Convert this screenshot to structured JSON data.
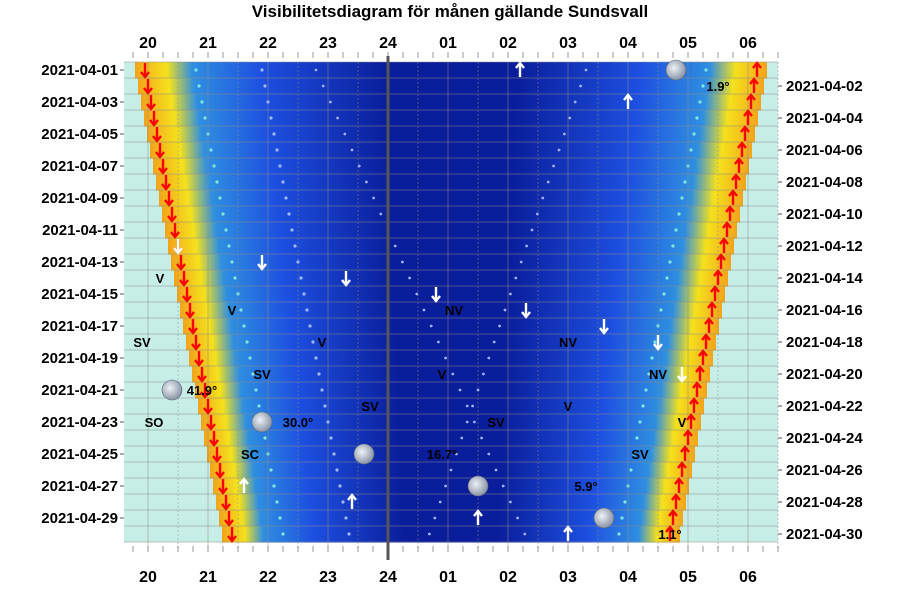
{
  "title": "Visibilitetsdiagram för månen gällande Sundsvall",
  "colors": {
    "twilight": "#c6eee6",
    "night_dark": "#06158a",
    "night_blue": "#1d4fe0",
    "sun_orange": "#f2a41b",
    "sun_yellow": "#f5e11c",
    "moonrise_arrow": "#ff0000",
    "moon_arrow": "#ffffff",
    "midnight_line": "#555555"
  },
  "chart_data": {
    "type": "visibility-diagram",
    "title": "Visibilitetsdiagram för månen gällande Sundsvall",
    "hour_ticks": [
      "20",
      "21",
      "22",
      "23",
      "24",
      "01",
      "02",
      "03",
      "04",
      "05",
      "06"
    ],
    "dates_left": [
      "2021-04-01",
      "2021-04-03",
      "2021-04-05",
      "2021-04-07",
      "2021-04-09",
      "2021-04-11",
      "2021-04-13",
      "2021-04-15",
      "2021-04-17",
      "2021-04-19",
      "2021-04-21",
      "2021-04-23",
      "2021-04-25",
      "2021-04-27",
      "2021-04-29"
    ],
    "dates_right": [
      "2021-04-02",
      "2021-04-04",
      "2021-04-06",
      "2021-04-08",
      "2021-04-10",
      "2021-04-12",
      "2021-04-14",
      "2021-04-16",
      "2021-04-18",
      "2021-04-20",
      "2021-04-22",
      "2021-04-24",
      "2021-04-26",
      "2021-04-28",
      "2021-04-30"
    ],
    "x_range": [
      19.6,
      30.5
    ],
    "day_count": 30,
    "sunset_hours": [
      19.95,
      20.0,
      20.05,
      20.1,
      20.15,
      20.2,
      20.25,
      20.3,
      20.35,
      20.4,
      20.45,
      20.5,
      20.55,
      20.6,
      20.65,
      20.7,
      20.75,
      20.8,
      20.85,
      20.9,
      20.95,
      21.0,
      21.05,
      21.1,
      21.15,
      21.2,
      21.25,
      21.3,
      21.35,
      21.4
    ],
    "sunrise_hours": [
      30.15,
      30.1,
      30.05,
      30.0,
      29.95,
      29.9,
      29.85,
      29.8,
      29.75,
      29.7,
      29.65,
      29.6,
      29.55,
      29.5,
      29.45,
      29.4,
      29.35,
      29.3,
      29.25,
      29.2,
      29.15,
      29.1,
      29.05,
      29.0,
      28.95,
      28.9,
      28.85,
      28.8,
      28.75,
      28.7
    ],
    "moon_rise_points": [
      {
        "day": 1,
        "hour": 26.2
      },
      {
        "day": 3,
        "hour": 28.0
      },
      {
        "day": 12,
        "hour": 19.3
      },
      {
        "day": 26,
        "hour": 19.1
      },
      {
        "day": 27,
        "hour": 21.6
      },
      {
        "day": 28,
        "hour": 23.4
      },
      {
        "day": 29,
        "hour": 25.5
      },
      {
        "day": 30,
        "hour": 27.0
      }
    ],
    "moon_set_points": [
      {
        "day": 12,
        "hour": 20.5
      },
      {
        "day": 13,
        "hour": 21.9
      },
      {
        "day": 14,
        "hour": 23.3
      },
      {
        "day": 15,
        "hour": 24.8
      },
      {
        "day": 16,
        "hour": 26.3
      },
      {
        "day": 17,
        "hour": 27.6
      },
      {
        "day": 18,
        "hour": 28.5
      },
      {
        "day": 20,
        "hour": 28.9
      }
    ],
    "moon_images": [
      {
        "day": 1,
        "hour": 28.8
      },
      {
        "day": 21,
        "hour": 20.4
      },
      {
        "day": 23,
        "hour": 21.9
      },
      {
        "day": 25,
        "hour": 23.6
      },
      {
        "day": 27,
        "hour": 25.5
      },
      {
        "day": 29,
        "hour": 27.6
      }
    ],
    "direction_labels": [
      {
        "text": "V",
        "day": 14,
        "hour": 20.2
      },
      {
        "text": "V",
        "day": 16,
        "hour": 21.4
      },
      {
        "text": "NV",
        "day": 16,
        "hour": 25.1
      },
      {
        "text": "SV",
        "day": 18,
        "hour": 19.9
      },
      {
        "text": "V",
        "day": 18,
        "hour": 22.9
      },
      {
        "text": "NV",
        "day": 18,
        "hour": 27.0
      },
      {
        "text": "SV",
        "day": 20,
        "hour": 21.9
      },
      {
        "text": "V",
        "day": 20,
        "hour": 24.9
      },
      {
        "text": "NV",
        "day": 20,
        "hour": 28.5
      },
      {
        "text": "SV",
        "day": 22,
        "hour": 23.7
      },
      {
        "text": "V",
        "day": 22,
        "hour": 27.0
      },
      {
        "text": "SO",
        "day": 23,
        "hour": 20.1
      },
      {
        "text": "SV",
        "day": 23,
        "hour": 25.8
      },
      {
        "text": "V",
        "day": 23,
        "hour": 28.9
      },
      {
        "text": "SC",
        "day": 25,
        "hour": 21.7
      },
      {
        "text": "SV",
        "day": 25,
        "hour": 28.2
      }
    ],
    "altitude_labels": [
      {
        "text": "1.9°",
        "day": 2,
        "hour": 29.5
      },
      {
        "text": "41.9°",
        "day": 21,
        "hour": 20.9
      },
      {
        "text": "30.0°",
        "day": 23,
        "hour": 22.5
      },
      {
        "text": "16.7°",
        "day": 25,
        "hour": 24.9
      },
      {
        "text": "5.9°",
        "day": 27,
        "hour": 27.3
      },
      {
        "text": "1.1°",
        "day": 30,
        "hour": 28.7
      }
    ]
  }
}
